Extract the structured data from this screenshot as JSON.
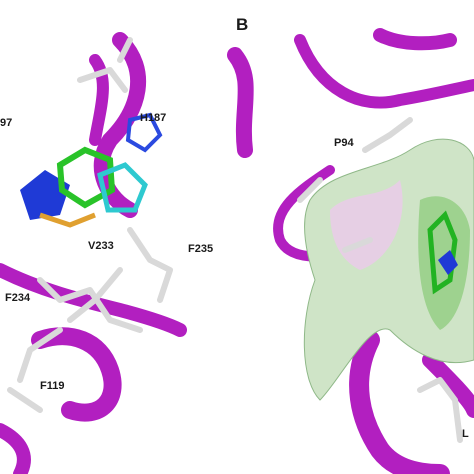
{
  "panel_label": "B",
  "left_panel": {
    "residue_labels": [
      "97",
      "H187",
      "F235",
      "V233",
      "F234",
      "F119"
    ]
  },
  "right_panel": {
    "residue_labels": [
      "P94",
      "L"
    ]
  }
}
